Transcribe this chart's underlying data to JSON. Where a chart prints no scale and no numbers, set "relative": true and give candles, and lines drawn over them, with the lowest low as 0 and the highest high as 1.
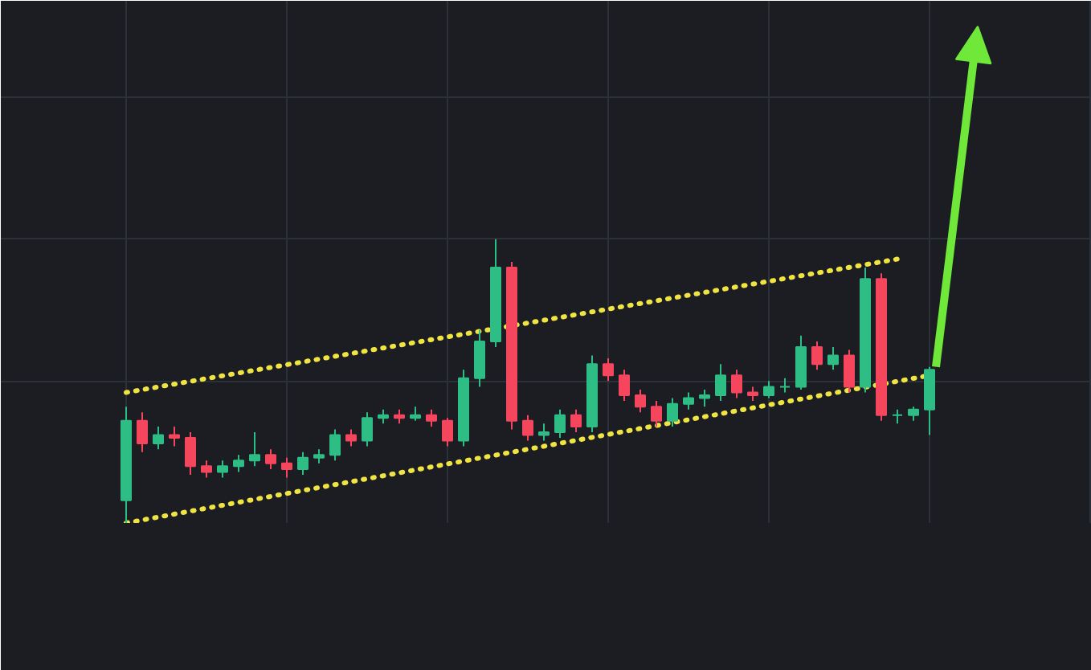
{
  "chart_data": {
    "type": "candlestick",
    "relative": true,
    "grid": true,
    "categories": [
      null,
      null,
      null,
      null,
      null,
      null,
      null,
      null,
      null,
      null,
      null,
      null,
      null,
      null,
      null,
      null,
      null,
      null,
      null,
      null,
      null,
      null,
      null,
      null,
      null,
      null,
      null,
      null,
      null,
      null,
      null,
      null,
      null,
      null,
      null,
      null,
      null,
      null,
      null,
      null,
      null,
      null,
      null,
      null,
      null,
      null,
      null,
      null,
      null,
      null,
      null
    ],
    "ohlc": [
      [
        0.08,
        0.41,
        0,
        0.36
      ],
      [
        0.36,
        0.39,
        0.25,
        0.28
      ],
      [
        0.28,
        0.34,
        0.26,
        0.31
      ],
      [
        0.31,
        0.34,
        0.27,
        0.3
      ],
      [
        0.3,
        0.32,
        0.17,
        0.2
      ],
      [
        0.2,
        0.22,
        0.16,
        0.18
      ],
      [
        0.18,
        0.22,
        0.16,
        0.2
      ],
      [
        0.2,
        0.24,
        0.18,
        0.22
      ],
      [
        0.22,
        0.32,
        0.2,
        0.24
      ],
      [
        0.24,
        0.26,
        0.19,
        0.21
      ],
      [
        0.21,
        0.23,
        0.16,
        0.19
      ],
      [
        0.19,
        0.25,
        0.17,
        0.23
      ],
      [
        0.23,
        0.26,
        0.21,
        0.24
      ],
      [
        0.24,
        0.33,
        0.22,
        0.31
      ],
      [
        0.31,
        0.33,
        0.27,
        0.29
      ],
      [
        0.29,
        0.39,
        0.27,
        0.37
      ],
      [
        0.37,
        0.4,
        0.35,
        0.38
      ],
      [
        0.38,
        0.4,
        0.35,
        0.37
      ],
      [
        0.37,
        0.41,
        0.36,
        0.38
      ],
      [
        0.38,
        0.4,
        0.34,
        0.36
      ],
      [
        0.36,
        0.37,
        0.27,
        0.29
      ],
      [
        0.29,
        0.54,
        0.27,
        0.51
      ],
      [
        0.51,
        0.68,
        0.48,
        0.64
      ],
      [
        0.64,
        1.0,
        0.62,
        0.9
      ],
      [
        0.9,
        0.92,
        0.33,
        0.36
      ],
      [
        0.36,
        0.38,
        0.29,
        0.31
      ],
      [
        0.31,
        0.35,
        0.29,
        0.32
      ],
      [
        0.32,
        0.4,
        0.3,
        0.38
      ],
      [
        0.38,
        0.4,
        0.32,
        0.34
      ],
      [
        0.34,
        0.59,
        0.32,
        0.56
      ],
      [
        0.56,
        0.58,
        0.5,
        0.52
      ],
      [
        0.52,
        0.54,
        0.43,
        0.45
      ],
      [
        0.45,
        0.47,
        0.39,
        0.41
      ],
      [
        0.41,
        0.43,
        0.34,
        0.36
      ],
      [
        0.36,
        0.44,
        0.34,
        0.42
      ],
      [
        0.42,
        0.46,
        0.4,
        0.44
      ],
      [
        0.44,
        0.47,
        0.41,
        0.45
      ],
      [
        0.45,
        0.56,
        0.43,
        0.52
      ],
      [
        0.52,
        0.54,
        0.44,
        0.46
      ],
      [
        0.46,
        0.48,
        0.43,
        0.45
      ],
      [
        0.45,
        0.5,
        0.44,
        0.48
      ],
      [
        0.48,
        0.51,
        0.46,
        0.48
      ],
      [
        0.48,
        0.66,
        0.47,
        0.62
      ],
      [
        0.62,
        0.64,
        0.54,
        0.56
      ],
      [
        0.56,
        0.62,
        0.54,
        0.59
      ],
      [
        0.59,
        0.61,
        0.46,
        0.48
      ],
      [
        0.48,
        0.9,
        0.46,
        0.86
      ],
      [
        0.86,
        0.88,
        0.36,
        0.38
      ],
      [
        0.38,
        0.4,
        0.35,
        0.38
      ],
      [
        0.38,
        0.41,
        0.36,
        0.4
      ],
      [
        0.4,
        0.55,
        0.31,
        0.54
      ]
    ],
    "series": [
      {
        "type": "line",
        "values": [
          0.46,
          null,
          null,
          null,
          null,
          null,
          null,
          null,
          null,
          null,
          null,
          null,
          null,
          null,
          null,
          null,
          null,
          null,
          null,
          null,
          null,
          null,
          null,
          null,
          null,
          null,
          null,
          null,
          null,
          null,
          null,
          null,
          null,
          null,
          null,
          null,
          null,
          null,
          null,
          null,
          null,
          null,
          null,
          null,
          null,
          null,
          null,
          null,
          0.93,
          null,
          null
        ],
        "color": "#f0e442",
        "line_style": "dotted"
      },
      {
        "type": "line",
        "values": [
          0,
          null,
          null,
          null,
          null,
          null,
          null,
          null,
          null,
          null,
          null,
          null,
          null,
          null,
          null,
          null,
          null,
          null,
          null,
          null,
          null,
          null,
          null,
          null,
          null,
          null,
          null,
          null,
          null,
          null,
          null,
          null,
          null,
          null,
          null,
          null,
          null,
          null,
          null,
          null,
          null,
          null,
          null,
          null,
          null,
          null,
          null,
          null,
          null,
          null,
          0.52
        ],
        "color": "#f0e442",
        "line_style": "dotted"
      }
    ]
  }
}
